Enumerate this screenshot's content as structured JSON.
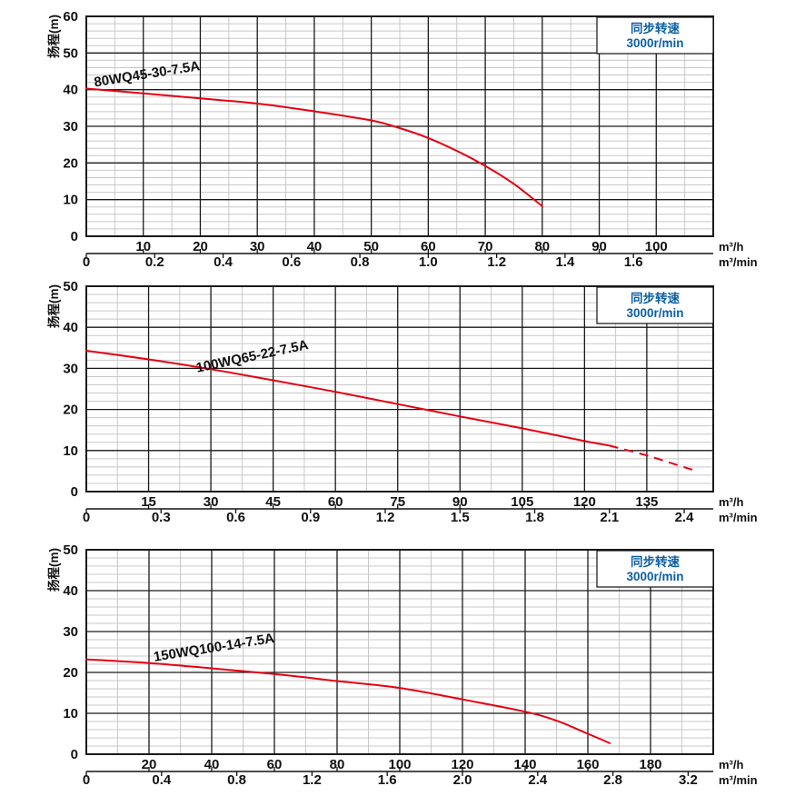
{
  "figure": {
    "y_axis_title": "扬程(m)",
    "unit_hour": "m³/h",
    "unit_minute": "m³/min",
    "speed_box_line1": "同步转速",
    "speed_box_line2": "3000r/min"
  },
  "colors": {
    "background": "#ffffff",
    "curve": "#e60012",
    "speed_text": "#0c5fa4",
    "grid_major": "#1a1a1a",
    "grid_minor": "#c8c8c8",
    "text": "#111111"
  },
  "chart_data": [
    {
      "type": "line",
      "series_label": "80WQ45-30-7.5A",
      "ylabel": "扬程(m)",
      "xlabel_primary": "m³/h",
      "xlabel_secondary": "m³/min",
      "annotation_line1": "同步转速",
      "annotation_line2": "3000r/min",
      "ylim": [
        0,
        60
      ],
      "y_tick_step": 10,
      "y_minor_step": 2,
      "xlim": [
        0,
        110
      ],
      "x_tick_step": 10,
      "x_minor_step": 5,
      "x_ticks_m3h": [
        10,
        20,
        30,
        40,
        50,
        60,
        70,
        80,
        90,
        100
      ],
      "x_ticks_m3min": [
        "0",
        "0.2",
        "0.4",
        "0.6",
        "0.8",
        "1.0",
        "1.2",
        "1.4",
        "1.6"
      ],
      "points": {
        "flow_m3h": [
          0,
          10,
          20,
          30,
          40,
          50,
          55,
          60,
          65,
          70,
          75,
          80
        ],
        "head_m": [
          40.3,
          39.0,
          37.6,
          36.2,
          34.1,
          31.6,
          29.5,
          26.8,
          23.3,
          19.2,
          14.3,
          8.2
        ]
      },
      "dashed_from_m3h": null,
      "label_anchor": {
        "x": 1.5,
        "y": 40.8,
        "angle_deg": -9
      }
    },
    {
      "type": "line",
      "series_label": "100WQ65-22-7.5A",
      "ylabel": "扬程(m)",
      "xlabel_primary": "m³/h",
      "xlabel_secondary": "m³/min",
      "annotation_line1": "同步转速",
      "annotation_line2": "3000r/min",
      "ylim": [
        0,
        50
      ],
      "y_tick_step": 10,
      "y_minor_step": 2,
      "xlim": [
        0,
        151
      ],
      "x_tick_step": 15,
      "x_minor_step": 7.5,
      "x_ticks_m3h": [
        15,
        30,
        45,
        60,
        75,
        90,
        105,
        120,
        135
      ],
      "x_ticks_m3min": [
        "0",
        "0.3",
        "0.6",
        "0.9",
        "1.2",
        "1.5",
        "1.8",
        "2.1",
        "2.4"
      ],
      "points": {
        "flow_m3h": [
          0,
          15,
          30,
          45,
          60,
          75,
          90,
          105,
          120,
          126,
          135,
          141,
          147
        ],
        "head_m": [
          34.3,
          32.2,
          29.8,
          27.1,
          24.3,
          21.3,
          18.3,
          15.4,
          12.3,
          11.2,
          8.8,
          6.9,
          5.0
        ]
      },
      "dashed_from_m3h": 126,
      "label_anchor": {
        "x": 26.7,
        "y": 29.0,
        "angle_deg": -12
      }
    },
    {
      "type": "line",
      "series_label": "150WQ100-14-7.5A",
      "ylabel": "扬程(m)",
      "xlabel_primary": "m³/h",
      "xlabel_secondary": "m³/min",
      "annotation_line1": "同步转速",
      "annotation_line2": "3000r/min",
      "ylim": [
        0,
        50
      ],
      "y_tick_step": 10,
      "y_minor_step": 2,
      "xlim": [
        0,
        200
      ],
      "x_tick_step": 20,
      "x_minor_step": 10,
      "x_ticks_m3h": [
        20,
        40,
        60,
        80,
        100,
        120,
        140,
        160,
        180
      ],
      "x_ticks_m3min": [
        "0",
        "0.4",
        "0.8",
        "1.2",
        "1.6",
        "2.0",
        "2.4",
        "2.8",
        "3.2"
      ],
      "points": {
        "flow_m3h": [
          0,
          20,
          40,
          60,
          80,
          100,
          120,
          140,
          150,
          160,
          167
        ],
        "head_m": [
          23.2,
          22.3,
          21.0,
          19.6,
          17.9,
          16.2,
          13.4,
          10.4,
          8.2,
          5.0,
          2.7
        ]
      },
      "dashed_from_m3h": null,
      "label_anchor": {
        "x": 21.7,
        "y": 22.7,
        "angle_deg": -9
      }
    }
  ]
}
